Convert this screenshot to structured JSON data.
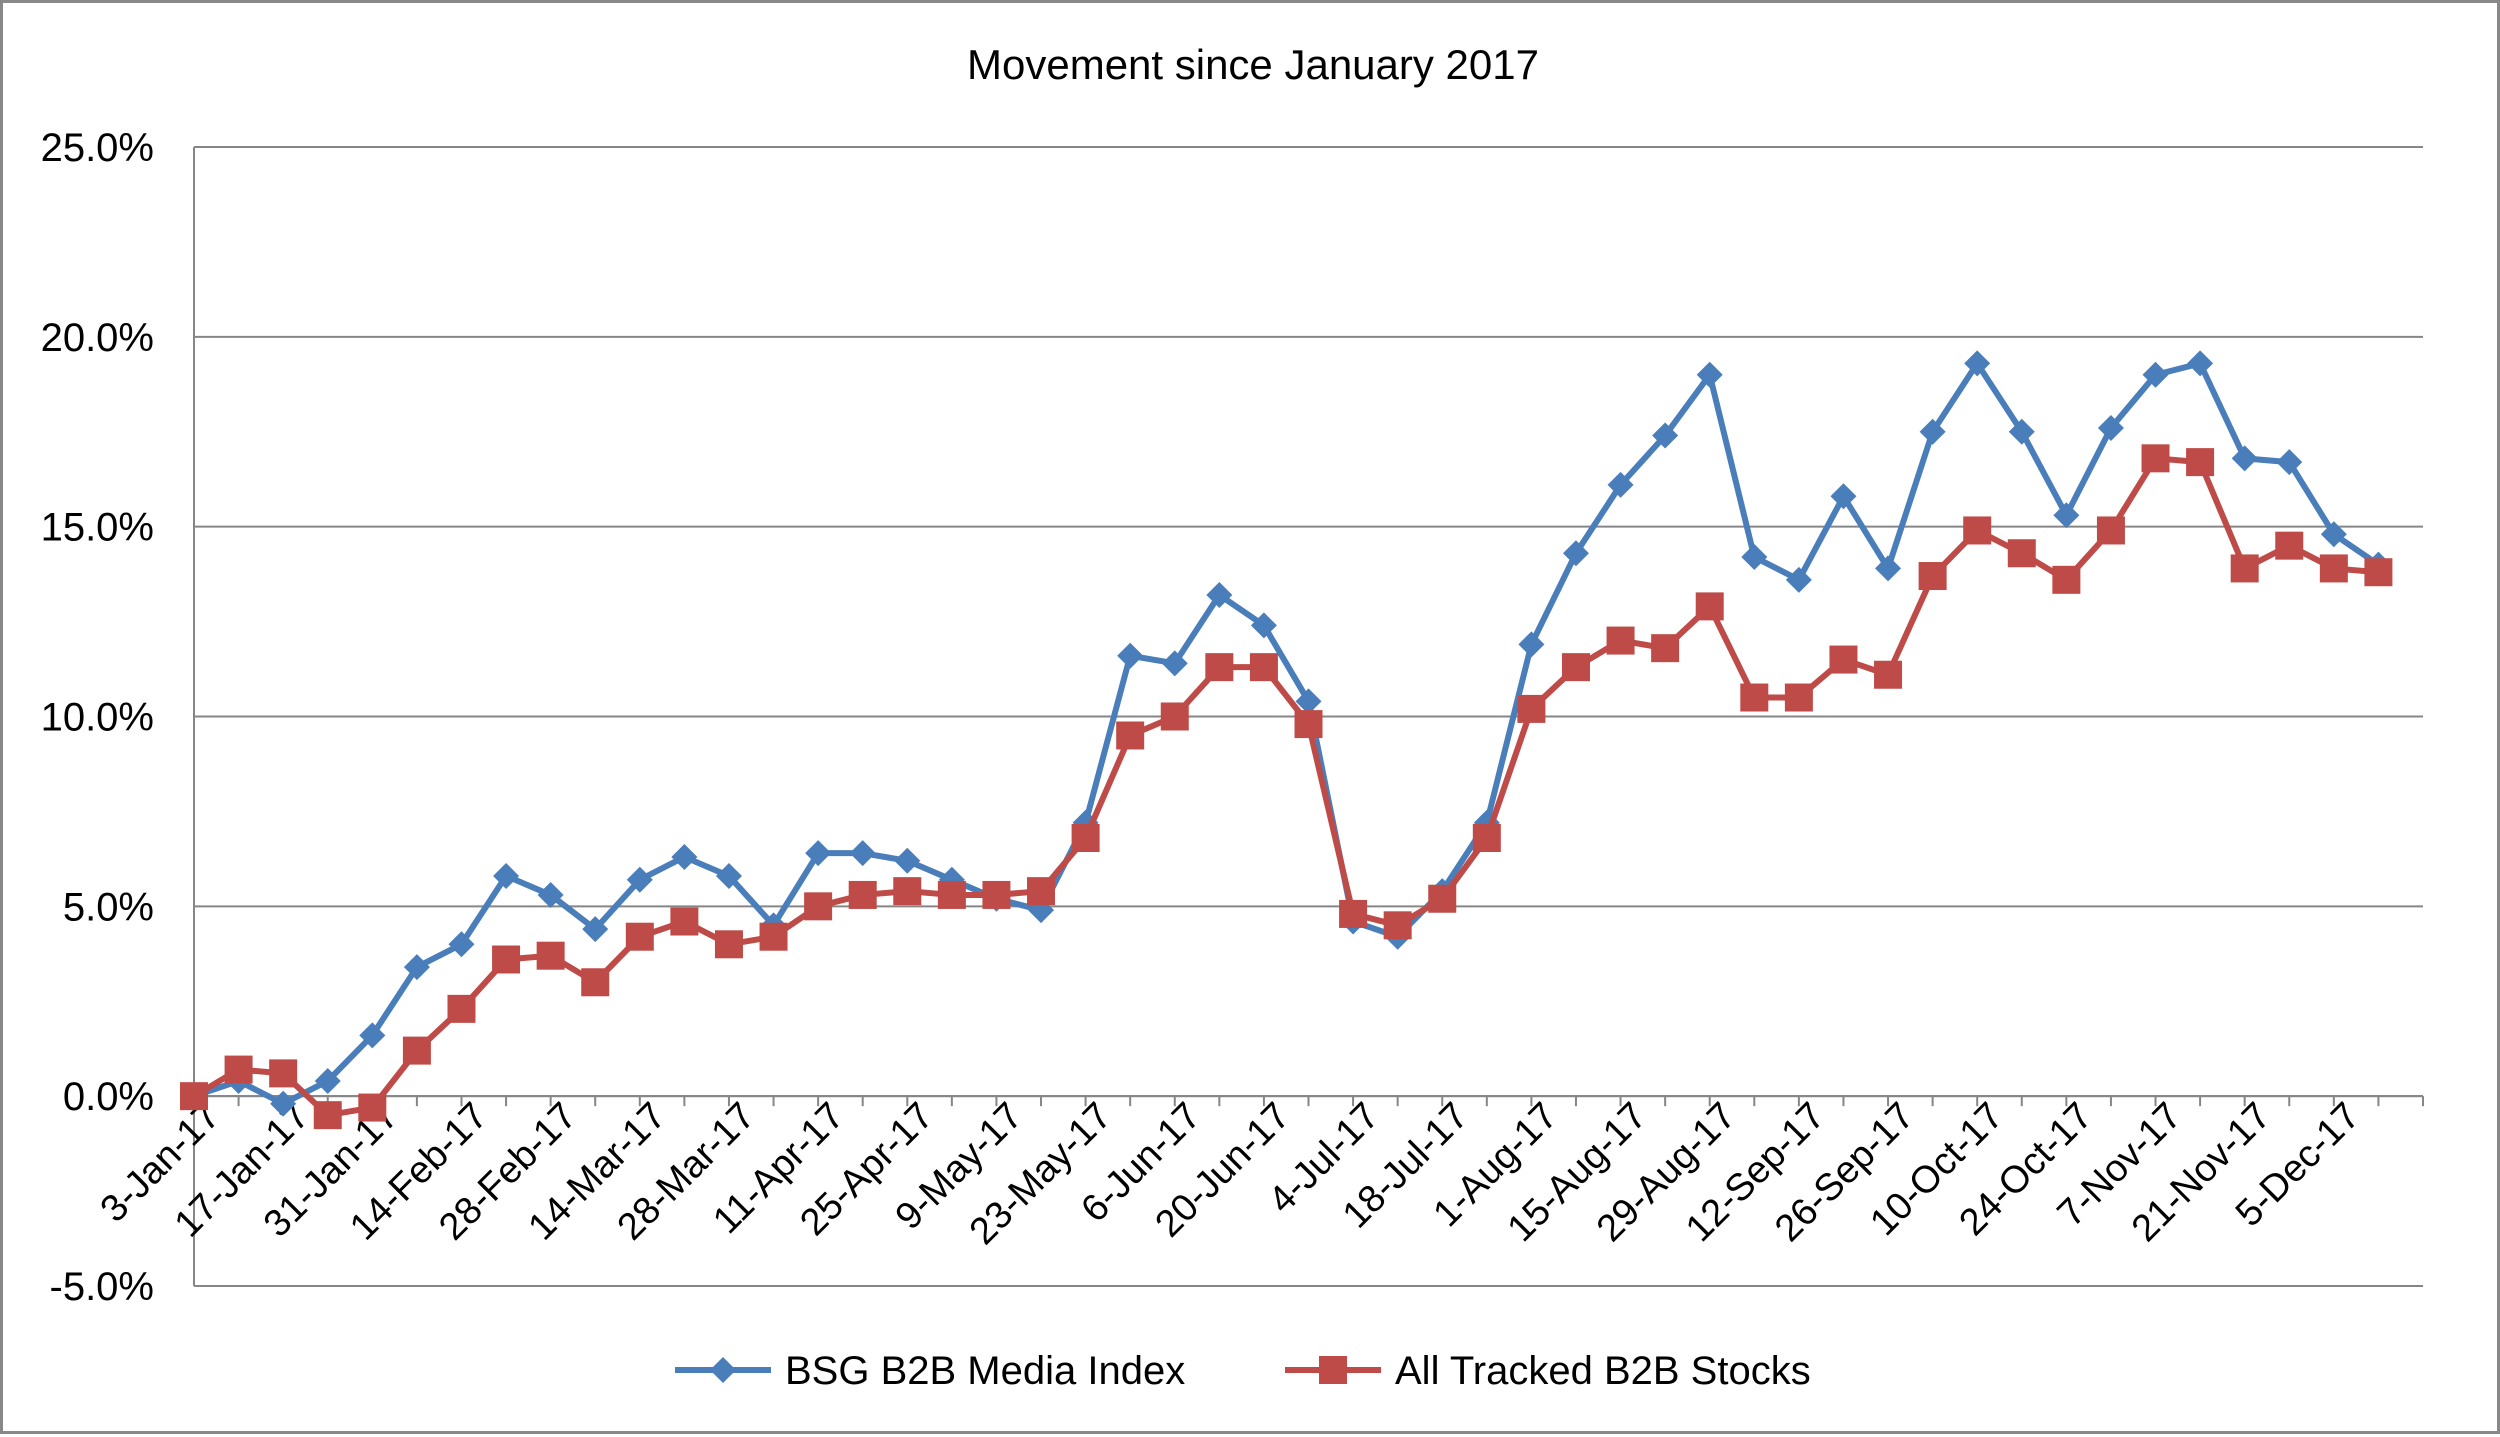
{
  "chart_data": {
    "type": "line",
    "title": "Movement since January 2017",
    "xlabel": "",
    "ylabel": "",
    "ylim": [
      -5.0,
      25.0
    ],
    "y_ticks": [
      -5.0,
      0.0,
      5.0,
      10.0,
      15.0,
      20.0,
      25.0
    ],
    "y_tick_labels": [
      "-5.0%",
      "0.0%",
      "5.0%",
      "10.0%",
      "15.0%",
      "20.0%",
      "25.0%"
    ],
    "x": [
      "3-Jan-17",
      "10-Jan-17",
      "17-Jan-17",
      "24-Jan-17",
      "31-Jan-17",
      "7-Feb-17",
      "14-Feb-17",
      "21-Feb-17",
      "28-Feb-17",
      "7-Mar-17",
      "14-Mar-17",
      "21-Mar-17",
      "28-Mar-17",
      "4-Apr-17",
      "11-Apr-17",
      "18-Apr-17",
      "25-Apr-17",
      "2-May-17",
      "9-May-17",
      "16-May-17",
      "23-May-17",
      "30-May-17",
      "6-Jun-17",
      "13-Jun-17",
      "20-Jun-17",
      "27-Jun-17",
      "4-Jul-17",
      "11-Jul-17",
      "18-Jul-17",
      "25-Jul-17",
      "1-Aug-17",
      "8-Aug-17",
      "15-Aug-17",
      "22-Aug-17",
      "29-Aug-17",
      "5-Sep-17",
      "12-Sep-17",
      "19-Sep-17",
      "26-Sep-17",
      "3-Oct-17",
      "10-Oct-17",
      "17-Oct-17",
      "24-Oct-17",
      "31-Oct-17",
      "7-Nov-17",
      "14-Nov-17",
      "21-Nov-17",
      "28-Nov-17",
      "5-Dec-17",
      "12-Dec-17"
    ],
    "x_tick_labels": [
      "3-Jan-17",
      "17-Jan-17",
      "31-Jan-17",
      "14-Feb-17",
      "28-Feb-17",
      "14-Mar-17",
      "28-Mar-17",
      "11-Apr-17",
      "25-Apr-17",
      "9-May-17",
      "23-May-17",
      "6-Jun-17",
      "20-Jun-17",
      "4-Jul-17",
      "18-Jul-17",
      "1-Aug-17",
      "15-Aug-17",
      "29-Aug-17",
      "12-Sep-17",
      "26-Sep-17",
      "10-Oct-17",
      "24-Oct-17",
      "7-Nov-17",
      "21-Nov-17",
      "5-Dec-17"
    ],
    "series": [
      {
        "name": "BSG B2B Media Index",
        "color": "#4a7ebb",
        "marker": "diamond",
        "values": [
          0.0,
          0.4,
          -0.2,
          0.4,
          1.6,
          3.4,
          4.0,
          5.8,
          5.3,
          4.4,
          5.7,
          6.3,
          5.8,
          4.5,
          6.4,
          6.4,
          6.2,
          5.7,
          5.2,
          4.9,
          7.2,
          11.6,
          11.4,
          13.2,
          12.4,
          10.4,
          4.6,
          4.2,
          5.4,
          7.2,
          11.9,
          14.3,
          16.1,
          17.4,
          19.0,
          14.2,
          13.6,
          15.8,
          13.9,
          17.5,
          19.3,
          17.5,
          15.3,
          17.6,
          19.0,
          19.3,
          16.8,
          16.7,
          14.8,
          14.0
        ]
      },
      {
        "name": "All Tracked B2B Stocks",
        "color": "#be4b48",
        "marker": "square",
        "values": [
          0.0,
          0.7,
          0.6,
          -0.5,
          -0.3,
          1.2,
          2.3,
          3.6,
          3.7,
          3.0,
          4.2,
          4.6,
          4.0,
          4.2,
          5.0,
          5.3,
          5.4,
          5.3,
          5.3,
          5.4,
          6.8,
          9.5,
          10.0,
          11.3,
          11.3,
          9.8,
          4.8,
          4.5,
          5.2,
          6.8,
          10.2,
          11.3,
          12.0,
          11.8,
          12.9,
          10.5,
          10.5,
          11.5,
          11.1,
          13.7,
          14.9,
          14.3,
          13.6,
          14.9,
          16.8,
          16.7,
          13.9,
          14.5,
          13.9,
          13.8
        ]
      }
    ],
    "grid": true,
    "legend_position": "bottom"
  }
}
